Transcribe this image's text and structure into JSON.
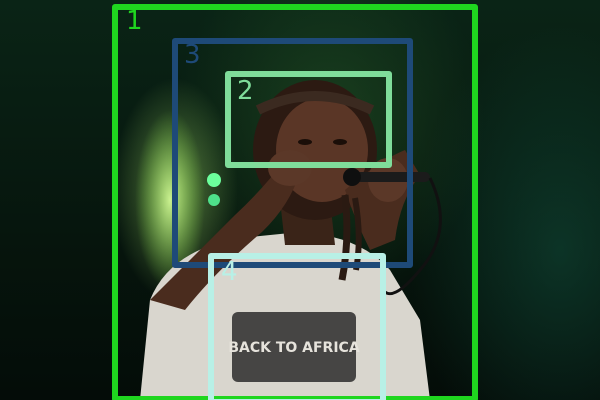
{
  "image": {
    "subject": "performer-singing-into-microphone",
    "shirt_text_top": "BACK TO AFRICA"
  },
  "annotations": [
    {
      "label": "1",
      "color": "#1fd61f"
    },
    {
      "label": "2",
      "color": "#7fdc9a"
    },
    {
      "label": "3",
      "color": "#1e4a78"
    },
    {
      "label": "4",
      "color": "#b8f0e6"
    }
  ]
}
